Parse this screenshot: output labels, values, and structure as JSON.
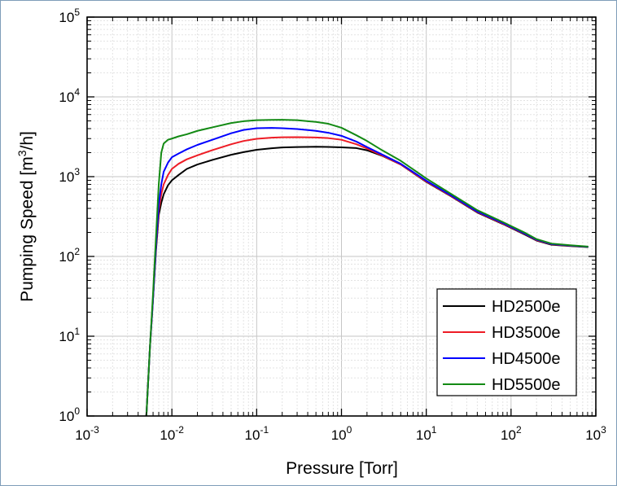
{
  "chart_data": {
    "type": "line",
    "xscale": "log",
    "yscale": "log",
    "xlabel": "Pressure [Torr]",
    "ylabel_main": "Pumping Speed [m",
    "ylabel_sup": "3",
    "ylabel_end": "/h]",
    "xlim": [
      0.001,
      1000
    ],
    "ylim": [
      1,
      100000
    ],
    "grid": "major and minor",
    "legend_position": "bottom-right",
    "x_ticks": [
      {
        "base": "10",
        "exp": "-3"
      },
      {
        "base": "10",
        "exp": "-2"
      },
      {
        "base": "10",
        "exp": "-1"
      },
      {
        "base": "10",
        "exp": "0"
      },
      {
        "base": "10",
        "exp": "1"
      },
      {
        "base": "10",
        "exp": "2"
      },
      {
        "base": "10",
        "exp": "3"
      }
    ],
    "y_ticks": [
      {
        "base": "10",
        "exp": "0"
      },
      {
        "base": "10",
        "exp": "1"
      },
      {
        "base": "10",
        "exp": "2"
      },
      {
        "base": "10",
        "exp": "3"
      },
      {
        "base": "10",
        "exp": "4"
      },
      {
        "base": "10",
        "exp": "5"
      }
    ],
    "series": [
      {
        "name": "HD2500e",
        "color": "#000000",
        "points": [
          [
            0.005,
            1
          ],
          [
            0.0055,
            7
          ],
          [
            0.006,
            30
          ],
          [
            0.0065,
            120
          ],
          [
            0.007,
            330
          ],
          [
            0.0075,
            470
          ],
          [
            0.008,
            600
          ],
          [
            0.009,
            780
          ],
          [
            0.01,
            900
          ],
          [
            0.012,
            1050
          ],
          [
            0.015,
            1250
          ],
          [
            0.02,
            1420
          ],
          [
            0.03,
            1620
          ],
          [
            0.05,
            1880
          ],
          [
            0.07,
            2030
          ],
          [
            0.1,
            2170
          ],
          [
            0.15,
            2270
          ],
          [
            0.2,
            2320
          ],
          [
            0.3,
            2350
          ],
          [
            0.5,
            2370
          ],
          [
            0.7,
            2360
          ],
          [
            1.0,
            2330
          ],
          [
            1.5,
            2280
          ],
          [
            2.0,
            2140
          ],
          [
            3.0,
            1830
          ],
          [
            5.0,
            1420
          ],
          [
            10,
            860
          ],
          [
            20,
            560
          ],
          [
            40,
            355
          ],
          [
            80,
            255
          ],
          [
            150,
            185
          ],
          [
            200,
            158
          ],
          [
            300,
            140
          ],
          [
            500,
            135
          ],
          [
            800,
            131
          ]
        ]
      },
      {
        "name": "HD3500e",
        "color": "#ee1c25",
        "points": [
          [
            0.005,
            1
          ],
          [
            0.0055,
            7
          ],
          [
            0.006,
            30
          ],
          [
            0.0065,
            130
          ],
          [
            0.007,
            380
          ],
          [
            0.0075,
            600
          ],
          [
            0.008,
            800
          ],
          [
            0.009,
            1050
          ],
          [
            0.01,
            1250
          ],
          [
            0.012,
            1450
          ],
          [
            0.015,
            1650
          ],
          [
            0.02,
            1850
          ],
          [
            0.03,
            2150
          ],
          [
            0.05,
            2550
          ],
          [
            0.07,
            2800
          ],
          [
            0.1,
            2980
          ],
          [
            0.15,
            3080
          ],
          [
            0.2,
            3120
          ],
          [
            0.3,
            3130
          ],
          [
            0.5,
            3100
          ],
          [
            0.7,
            3040
          ],
          [
            1.0,
            2900
          ],
          [
            1.5,
            2550
          ],
          [
            2.0,
            2250
          ],
          [
            3.0,
            1850
          ],
          [
            5.0,
            1420
          ],
          [
            10,
            870
          ],
          [
            20,
            565
          ],
          [
            40,
            360
          ],
          [
            80,
            258
          ],
          [
            150,
            188
          ],
          [
            200,
            160
          ],
          [
            300,
            142
          ],
          [
            500,
            136
          ],
          [
            800,
            132
          ]
        ]
      },
      {
        "name": "HD4500e",
        "color": "#0000ff",
        "points": [
          [
            0.005,
            1
          ],
          [
            0.0055,
            7
          ],
          [
            0.006,
            30
          ],
          [
            0.0065,
            140
          ],
          [
            0.007,
            450
          ],
          [
            0.0075,
            800
          ],
          [
            0.008,
            1150
          ],
          [
            0.009,
            1500
          ],
          [
            0.01,
            1750
          ],
          [
            0.012,
            1950
          ],
          [
            0.015,
            2200
          ],
          [
            0.02,
            2500
          ],
          [
            0.03,
            2900
          ],
          [
            0.05,
            3500
          ],
          [
            0.07,
            3850
          ],
          [
            0.1,
            4050
          ],
          [
            0.15,
            4080
          ],
          [
            0.2,
            4050
          ],
          [
            0.3,
            3950
          ],
          [
            0.5,
            3750
          ],
          [
            0.7,
            3550
          ],
          [
            1.0,
            3250
          ],
          [
            1.5,
            2750
          ],
          [
            2.0,
            2350
          ],
          [
            3.0,
            1900
          ],
          [
            5.0,
            1450
          ],
          [
            10,
            890
          ],
          [
            20,
            575
          ],
          [
            40,
            365
          ],
          [
            80,
            262
          ],
          [
            150,
            190
          ],
          [
            200,
            162
          ],
          [
            300,
            143
          ],
          [
            500,
            137
          ],
          [
            800,
            132
          ]
        ]
      },
      {
        "name": "HD5500e",
        "color": "#138a14",
        "points": [
          [
            0.005,
            1
          ],
          [
            0.0055,
            7
          ],
          [
            0.006,
            35
          ],
          [
            0.0065,
            180
          ],
          [
            0.007,
            800
          ],
          [
            0.0075,
            2000
          ],
          [
            0.008,
            2600
          ],
          [
            0.009,
            2900
          ],
          [
            0.01,
            3000
          ],
          [
            0.012,
            3200
          ],
          [
            0.015,
            3400
          ],
          [
            0.02,
            3750
          ],
          [
            0.03,
            4150
          ],
          [
            0.05,
            4700
          ],
          [
            0.07,
            4950
          ],
          [
            0.1,
            5100
          ],
          [
            0.15,
            5150
          ],
          [
            0.2,
            5160
          ],
          [
            0.3,
            5100
          ],
          [
            0.5,
            4850
          ],
          [
            0.7,
            4600
          ],
          [
            1.0,
            4100
          ],
          [
            1.5,
            3300
          ],
          [
            2.0,
            2800
          ],
          [
            3.0,
            2150
          ],
          [
            5.0,
            1580
          ],
          [
            10,
            950
          ],
          [
            20,
            600
          ],
          [
            40,
            380
          ],
          [
            80,
            270
          ],
          [
            150,
            195
          ],
          [
            200,
            165
          ],
          [
            300,
            145
          ],
          [
            500,
            138
          ],
          [
            800,
            133
          ]
        ]
      }
    ]
  }
}
